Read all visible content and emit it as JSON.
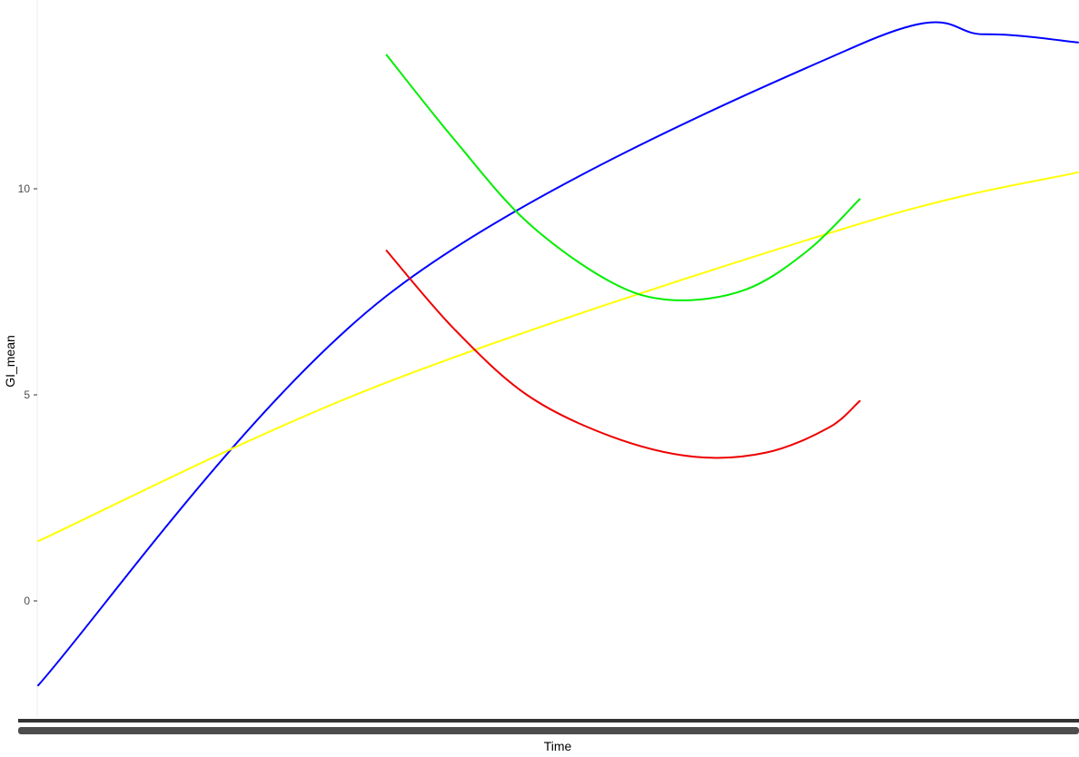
{
  "chart_data": {
    "type": "line",
    "title": "",
    "xlabel": "Time",
    "ylabel": "GI_mean",
    "ylim": [
      -2.2,
      14.5
    ],
    "yticks": [
      0,
      5,
      10
    ],
    "xlim": [
      0,
      1
    ],
    "grid": false,
    "legend": "none",
    "series": [
      {
        "color": "#0000ff",
        "x": [
          0.0,
          0.335,
          0.79,
          0.91,
          1.0
        ],
        "y": [
          -2.05,
          7.4,
          13.5,
          13.75,
          13.55
        ]
      },
      {
        "color": "#ffff00",
        "x": [
          0.0,
          0.335,
          0.79,
          1.0
        ],
        "y": [
          1.45,
          5.3,
          9.15,
          10.4
        ]
      },
      {
        "color": "#00ee00",
        "x": [
          0.335,
          0.4,
          0.47,
          0.55,
          0.61,
          0.68,
          0.74,
          0.79
        ],
        "y": [
          13.25,
          11.2,
          9.2,
          7.75,
          7.3,
          7.55,
          8.5,
          9.75
        ]
      },
      {
        "color": "#ee0000",
        "x": [
          0.335,
          0.4,
          0.47,
          0.55,
          0.63,
          0.7,
          0.76,
          0.79
        ],
        "y": [
          8.5,
          6.6,
          5.0,
          4.0,
          3.5,
          3.6,
          4.2,
          4.85
        ]
      }
    ]
  }
}
